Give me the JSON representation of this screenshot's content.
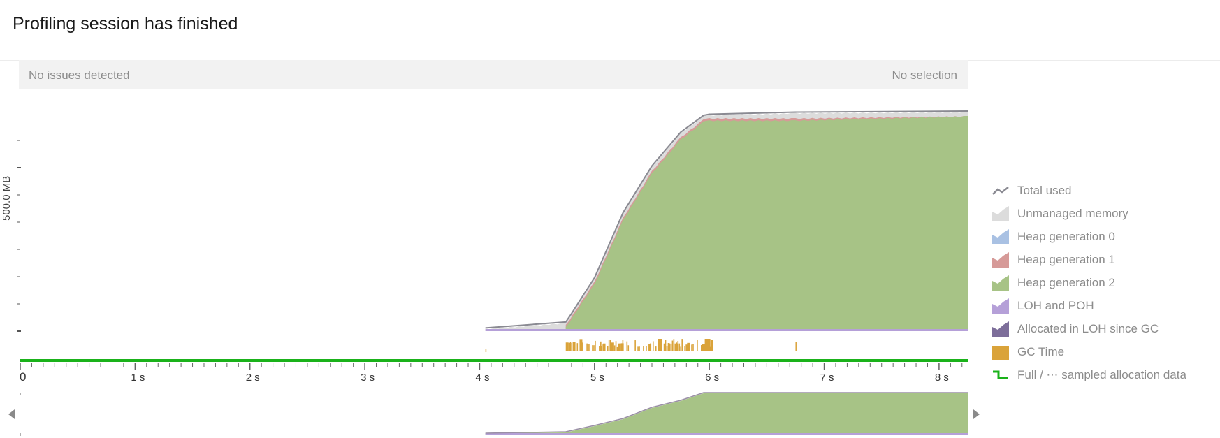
{
  "header": {
    "title": "Profiling session has finished"
  },
  "status": {
    "issues": "No issues detected",
    "selection": "No selection"
  },
  "chart_data": {
    "type": "area",
    "title": "",
    "xlabel": "",
    "ylabel": "500.0 MB",
    "x_unit": "s",
    "xlim": [
      0,
      8.25
    ],
    "x_ticks": [
      "0",
      "1 s",
      "2 s",
      "3 s",
      "4 s",
      "5 s",
      "6 s",
      "7 s",
      "8 s"
    ],
    "x_tick_values": [
      0,
      1,
      2,
      3,
      4,
      5,
      6,
      7,
      8
    ],
    "ylim": [
      0,
      1000
    ],
    "series": [
      {
        "name": "Total used",
        "x": [
          4.05,
          4.75,
          4.8,
          5.0,
          5.25,
          5.5,
          5.75,
          5.95,
          6.0,
          6.75,
          8.25
        ],
        "values": [
          12,
          40,
          80,
          250,
          560,
          780,
          940,
          1020,
          1025,
          1035,
          1040
        ]
      },
      {
        "name": "Unmanaged memory",
        "x": [
          4.05,
          4.75,
          4.8,
          5.0,
          5.25,
          5.5,
          5.75,
          5.95,
          6.0,
          6.75,
          8.25
        ],
        "values": [
          12,
          40,
          80,
          250,
          560,
          780,
          940,
          1020,
          1025,
          1035,
          1040
        ]
      },
      {
        "name": "Heap generation 1",
        "x": [
          4.75,
          5.0,
          5.25,
          5.5,
          5.75,
          5.95,
          6.0,
          6.75,
          8.25
        ],
        "values": [
          30,
          235,
          540,
          760,
          920,
          1005,
          1010,
          1010,
          1020
        ]
      },
      {
        "name": "Heap generation 2",
        "x": [
          4.75,
          5.0,
          5.25,
          5.5,
          5.75,
          5.95,
          6.0,
          6.75,
          8.25
        ],
        "values": [
          20,
          225,
          530,
          750,
          910,
          995,
          1000,
          1000,
          1020
        ]
      }
    ],
    "gc_time_range": [
      4.75,
      6.02
    ],
    "gc_time_extra": [
      4.05,
      6.75
    ],
    "overview_range": [
      4.05,
      8.25
    ]
  },
  "legend": [
    {
      "label": "Total used",
      "icon": "line-icon",
      "color": "#8a8a92"
    },
    {
      "label": "Unmanaged memory",
      "icon": "area-icon",
      "color": "#dcdcdc"
    },
    {
      "label": "Heap generation 0",
      "icon": "area-icon",
      "color": "#a9c1e3"
    },
    {
      "label": "Heap generation 1",
      "icon": "area-icon",
      "color": "#d69a98"
    },
    {
      "label": "Heap generation 2",
      "icon": "area-icon",
      "color": "#a7c386"
    },
    {
      "label": "LOH and POH",
      "icon": "area-icon",
      "color": "#b5a0d8"
    },
    {
      "label": "Allocated in LOH since GC",
      "icon": "area-icon",
      "color": "#7d6e9a"
    },
    {
      "label": "GC Time",
      "icon": "square-icon",
      "color": "#daa33a"
    },
    {
      "label": "Full / ⋯ sampled allocation data",
      "icon": "step-icon",
      "color": "#1ab21a"
    }
  ]
}
